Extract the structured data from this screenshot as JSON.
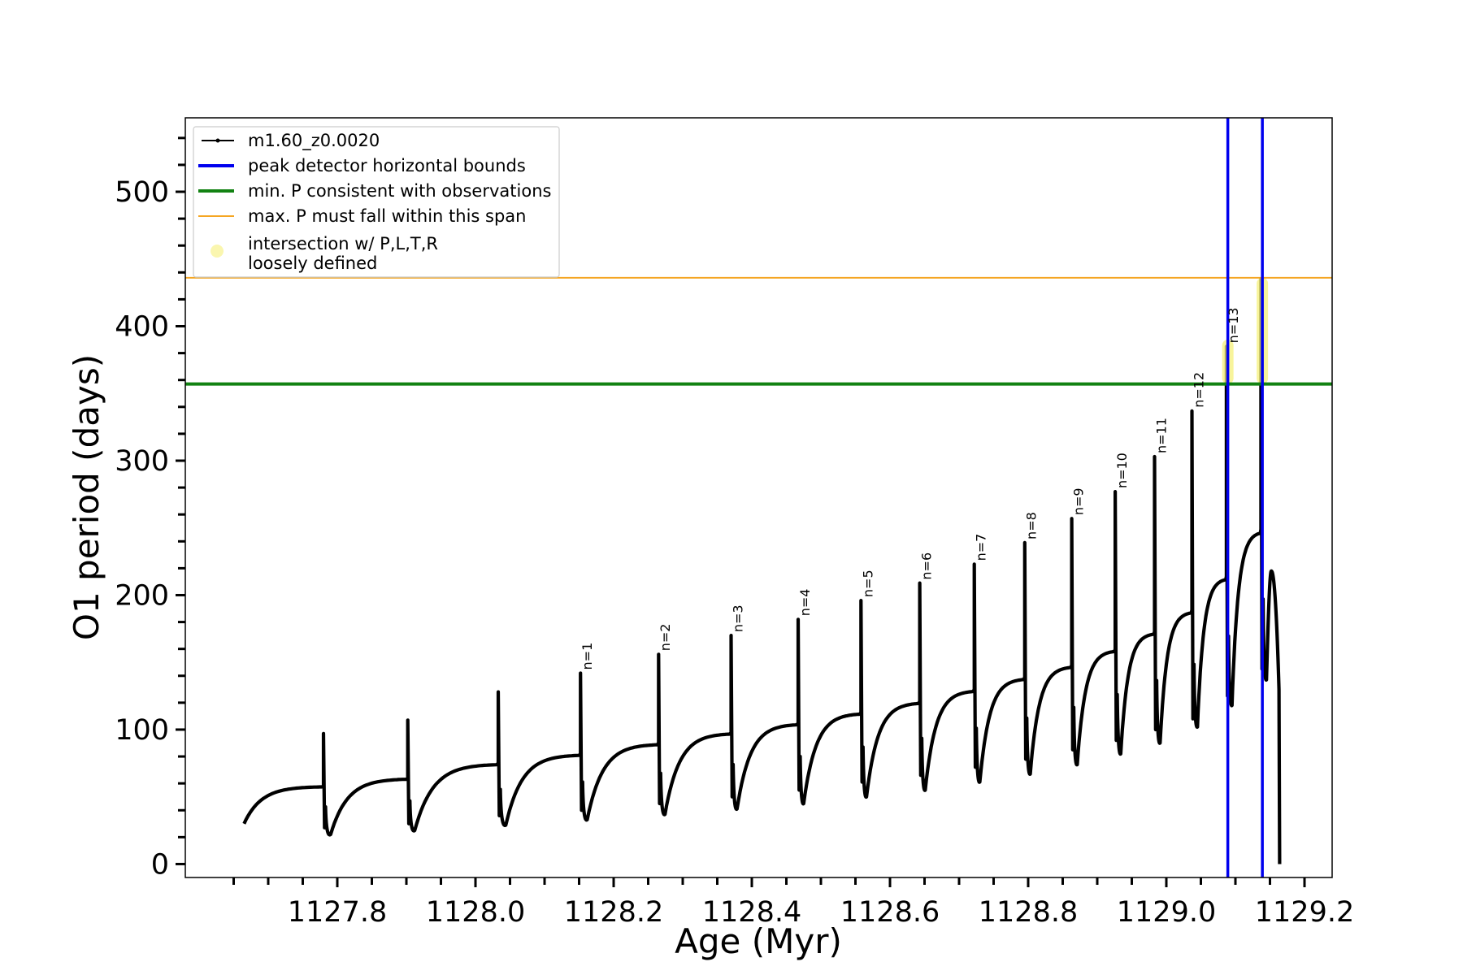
{
  "chart_data": {
    "type": "line",
    "title": "",
    "xlabel": "Age (Myr)",
    "ylabel": "O1 period (days)",
    "xlim": [
      1127.58,
      1129.24
    ],
    "ylim": [
      -10,
      555
    ],
    "xticks": [
      1127.8,
      1128.0,
      1128.2,
      1128.4,
      1128.6,
      1128.8,
      1129.0,
      1129.2
    ],
    "xtick_labels": [
      "1127.8",
      "1128.0",
      "1128.2",
      "1128.4",
      "1128.6",
      "1128.8",
      "1129.0",
      "1129.2"
    ],
    "yticks": [
      0,
      100,
      200,
      300,
      400,
      500
    ],
    "ytick_labels": [
      "0",
      "100",
      "200",
      "300",
      "400",
      "500"
    ],
    "grid": false,
    "legend_position": "top-left",
    "legend": [
      {
        "label": "m1.60_z0.0020",
        "style": "line-marker",
        "color": "#000000"
      },
      {
        "label": "peak detector horizontal bounds",
        "style": "line",
        "color": "#0000ee"
      },
      {
        "label": "min. P consistent with observations",
        "style": "line",
        "color": "#128212"
      },
      {
        "label": "max. P must fall within this span",
        "style": "line",
        "color": "#f5a623"
      },
      {
        "label": "intersection w/ P,L,T,R",
        "label2": "loosely defined",
        "style": "dot",
        "color": "#f6f07a"
      }
    ],
    "series": [
      {
        "name": "m1.60_z0.0020",
        "color": "#000000",
        "start": [
          1127.665,
          30
        ],
        "pulses": [
          {
            "peak_x": 1127.78,
            "base": 58,
            "spike": 97,
            "low": 27,
            "dip": 22,
            "label": ""
          },
          {
            "peak_x": 1127.902,
            "base": 64,
            "spike": 107,
            "low": 30,
            "dip": 25,
            "label": ""
          },
          {
            "peak_x": 1128.033,
            "base": 75,
            "spike": 128,
            "low": 36,
            "dip": 29,
            "label": ""
          },
          {
            "peak_x": 1128.152,
            "base": 82,
            "spike": 142,
            "low": 40,
            "dip": 33,
            "label": "n=1"
          },
          {
            "peak_x": 1128.265,
            "base": 90,
            "spike": 156,
            "low": 45,
            "dip": 37,
            "label": "n=2"
          },
          {
            "peak_x": 1128.37,
            "base": 98,
            "spike": 170,
            "low": 50,
            "dip": 41,
            "label": "n=3"
          },
          {
            "peak_x": 1128.467,
            "base": 105,
            "spike": 182,
            "low": 55,
            "dip": 45,
            "label": "n=4"
          },
          {
            "peak_x": 1128.558,
            "base": 113,
            "spike": 196,
            "low": 61,
            "dip": 50,
            "label": "n=5"
          },
          {
            "peak_x": 1128.643,
            "base": 121,
            "spike": 209,
            "low": 66,
            "dip": 55,
            "label": "n=6"
          },
          {
            "peak_x": 1128.722,
            "base": 130,
            "spike": 223,
            "low": 72,
            "dip": 61,
            "label": "n=7"
          },
          {
            "peak_x": 1128.795,
            "base": 139,
            "spike": 239,
            "low": 78,
            "dip": 67,
            "label": "n=8"
          },
          {
            "peak_x": 1128.863,
            "base": 148,
            "spike": 257,
            "low": 85,
            "dip": 74,
            "label": "n=9"
          },
          {
            "peak_x": 1128.926,
            "base": 160,
            "spike": 277,
            "low": 92,
            "dip": 82,
            "label": "n=10"
          },
          {
            "peak_x": 1128.983,
            "base": 173,
            "spike": 303,
            "low": 100,
            "dip": 90,
            "label": "n=11"
          },
          {
            "peak_x": 1129.037,
            "base": 189,
            "spike": 337,
            "low": 108,
            "dip": 102,
            "label": "n=12"
          },
          {
            "peak_x": 1129.087,
            "base": 214,
            "spike": 385,
            "low": 125,
            "dip": 118,
            "label": "n=13"
          },
          {
            "peak_x": 1129.137,
            "base": 249,
            "spike": 435,
            "low": 145,
            "dip": 137,
            "label": ""
          }
        ],
        "final": {
          "peak_x": 1129.152,
          "peak_y": 218,
          "drop_x": 1129.164,
          "end_y": 0
        }
      }
    ],
    "vertical_lines": [
      1129.089,
      1129.139
    ],
    "horizontal_lines": {
      "min_p": 357,
      "max_p": 436
    },
    "intersections": [
      {
        "x": 1129.089,
        "y_min": 357,
        "y_max": 390
      },
      {
        "x": 1129.139,
        "y_min": 357,
        "y_max": 436
      }
    ]
  }
}
